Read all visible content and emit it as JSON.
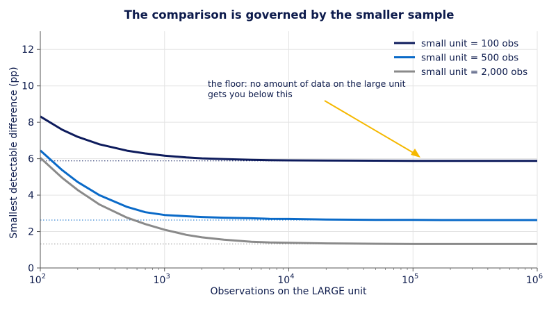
{
  "chart_data": {
    "type": "line",
    "title": "The comparison is governed by the smaller sample",
    "xlabel": "Observations on the LARGE unit",
    "ylabel": "Smallest detectable difference (pp)",
    "x_scale": "log",
    "xlim": [
      100,
      1000000
    ],
    "ylim": [
      0,
      13
    ],
    "x_ticks": [
      {
        "value": 100,
        "base": "10",
        "exp": "2"
      },
      {
        "value": 1000,
        "base": "10",
        "exp": "3"
      },
      {
        "value": 10000,
        "base": "10",
        "exp": "4"
      },
      {
        "value": 100000,
        "base": "10",
        "exp": "5"
      },
      {
        "value": 1000000,
        "base": "10",
        "exp": "6"
      }
    ],
    "y_ticks": [
      0,
      2,
      4,
      6,
      8,
      10,
      12
    ],
    "grid": true,
    "legend_position": "top-right",
    "x": [
      100,
      150,
      200,
      300,
      500,
      700,
      1000,
      1500,
      2000,
      3000,
      5000,
      7000,
      10000,
      20000,
      50000,
      100000,
      200000,
      500000,
      1000000
    ],
    "series": [
      {
        "name": "small unit = 100 obs",
        "color": "#0d1b5c",
        "floor": 5.88,
        "values": [
          8.32,
          7.59,
          7.2,
          6.79,
          6.44,
          6.29,
          6.17,
          6.07,
          6.02,
          5.98,
          5.94,
          5.92,
          5.91,
          5.9,
          5.89,
          5.88,
          5.88,
          5.88,
          5.88
        ]
      },
      {
        "name": "small unit = 500 obs",
        "color": "#0a6ac8",
        "floor": 2.63,
        "values": [
          6.45,
          5.37,
          4.72,
          3.99,
          3.35,
          3.06,
          2.91,
          2.84,
          2.8,
          2.76,
          2.73,
          2.7,
          2.69,
          2.66,
          2.64,
          2.64,
          2.63,
          2.63,
          2.63
        ]
      },
      {
        "name": "small unit = 2,000 obs",
        "color": "#8a8a8a",
        "floor": 1.32,
        "values": [
          6.05,
          4.95,
          4.28,
          3.48,
          2.76,
          2.41,
          2.1,
          1.82,
          1.68,
          1.55,
          1.44,
          1.4,
          1.38,
          1.35,
          1.33,
          1.32,
          1.32,
          1.32,
          1.32
        ]
      }
    ],
    "annotation": {
      "lines": [
        "the floor: no amount of data on the large unit",
        "gets you below this"
      ],
      "color": "#f5b800"
    }
  }
}
